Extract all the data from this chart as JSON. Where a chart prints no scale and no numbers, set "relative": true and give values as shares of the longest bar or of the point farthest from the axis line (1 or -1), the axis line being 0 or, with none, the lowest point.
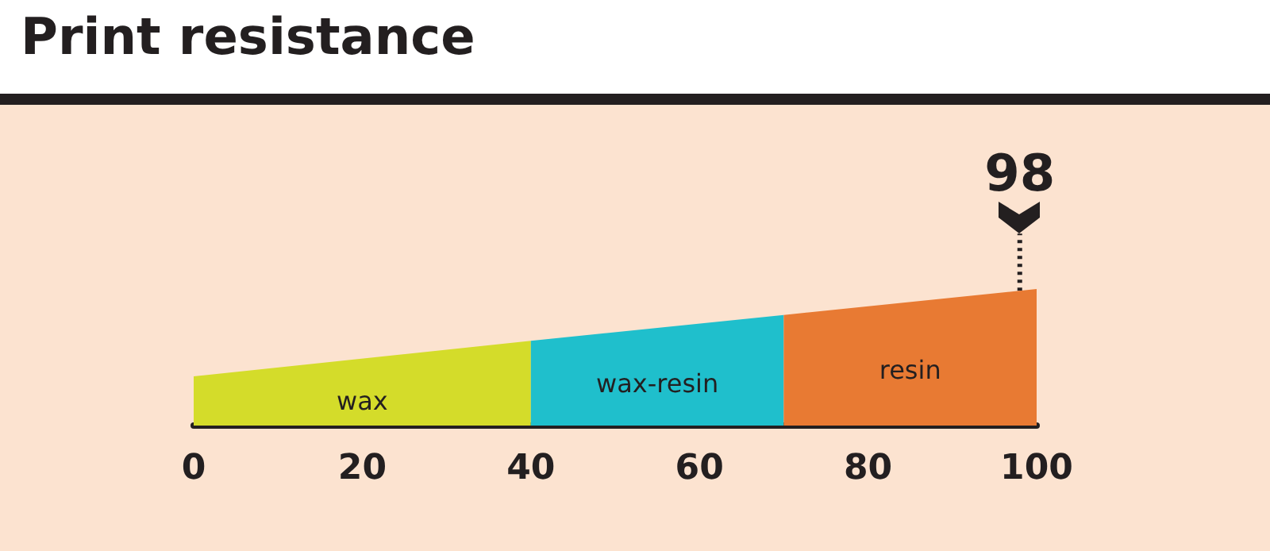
{
  "chart_data": {
    "type": "area",
    "title": "Print resistance",
    "relative": true,
    "series": [
      {
        "name": "wax",
        "color": "#d4dc2a",
        "x": [
          0,
          40
        ],
        "values": [
          0.36,
          0.62
        ]
      },
      {
        "name": "wax-resin",
        "color": "#1fbfcc",
        "x": [
          40,
          70
        ],
        "values": [
          0.62,
          0.81
        ]
      },
      {
        "name": "resin",
        "color": "#e87a33",
        "x": [
          70,
          100
        ],
        "values": [
          0.81,
          1
        ]
      }
    ],
    "xlim": [
      0,
      100
    ],
    "xticks": [
      0,
      20,
      40,
      60,
      80,
      100
    ],
    "tick_labels": "x",
    "grid": false,
    "legend": false,
    "ref_lines": [
      {
        "axis": "x",
        "value": 98,
        "label": "98",
        "line_style": "dotted",
        "color": "#231f20"
      }
    ]
  }
}
